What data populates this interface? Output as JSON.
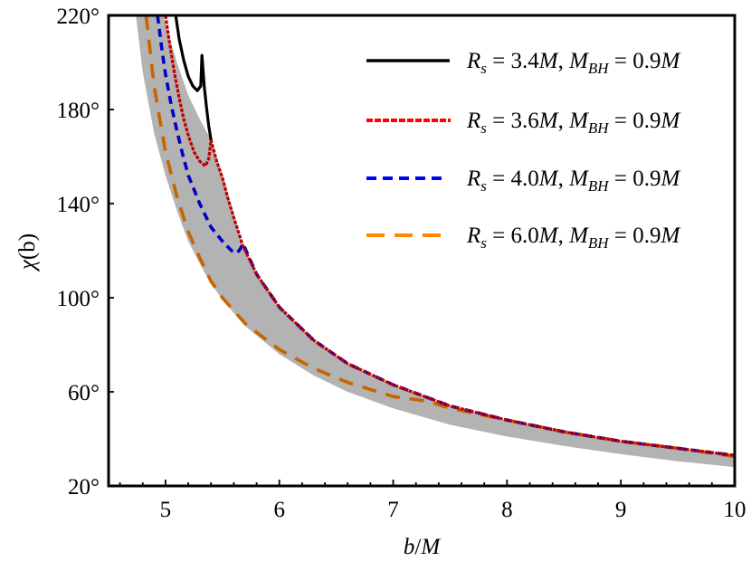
{
  "chart_data": {
    "type": "line",
    "title": "",
    "xlabel": "b/M",
    "ylabel": "χ(b)",
    "xlim": [
      4.5,
      10
    ],
    "ylim": [
      20,
      220
    ],
    "x_ticks": [
      5,
      6,
      7,
      8,
      9,
      10
    ],
    "x_tick_labels": [
      "5",
      "6",
      "7",
      "8",
      "9",
      "10"
    ],
    "y_ticks": [
      20,
      60,
      100,
      140,
      180,
      220
    ],
    "y_tick_labels": [
      "20°",
      "60°",
      "100°",
      "140°",
      "180°",
      "220°"
    ],
    "grid": false,
    "legend_position": "upper right",
    "band": {
      "name": "shaded region",
      "color": "#b3b3b3",
      "upper": {
        "x": [
          4.98,
          5.1,
          5.2,
          5.3,
          5.4,
          5.5,
          5.68,
          5.8,
          6.0,
          6.3,
          6.6,
          7.0,
          7.5,
          8.0,
          8.5,
          9.0,
          9.5,
          10.0
        ],
        "y": [
          220,
          200,
          186,
          176,
          167,
          152,
          122,
          110,
          96,
          82,
          72,
          63,
          54,
          48,
          43,
          39,
          36,
          33
        ]
      },
      "lower": {
        "x": [
          4.74,
          4.8,
          4.9,
          5.0,
          5.1,
          5.2,
          5.35,
          5.5,
          5.7,
          6.0,
          6.3,
          6.6,
          7.0,
          7.5,
          8.0,
          8.5,
          9.0,
          9.5,
          10.0
        ],
        "y": [
          220,
          196,
          170,
          152,
          137,
          124,
          110,
          99,
          88,
          76,
          67,
          60,
          53,
          46,
          41,
          37,
          33.5,
          30.5,
          28
        ]
      }
    },
    "series": [
      {
        "name": "R_s = 3.4M, M_BH = 0.9M",
        "color": "#000000",
        "style": "solid",
        "x": [
          5.09,
          5.12,
          5.16,
          5.2,
          5.24,
          5.28,
          5.31,
          5.32,
          5.34,
          5.36,
          5.38,
          5.4
        ],
        "y": [
          220,
          210,
          201,
          194,
          190,
          188,
          190,
          203,
          190,
          181,
          173,
          167
        ]
      },
      {
        "name": "R_s = 3.6M, M_BH = 0.9M",
        "color": "#d40000",
        "style": "dotted",
        "x": [
          5.0,
          5.04,
          5.08,
          5.12,
          5.16,
          5.2,
          5.25,
          5.3,
          5.35,
          5.38,
          5.4,
          5.45,
          5.5,
          5.55,
          5.6,
          5.68,
          5.8,
          6.0,
          6.3,
          6.6,
          7.0,
          7.5,
          8.0,
          8.5,
          9.0,
          9.5,
          10.0
        ],
        "y": [
          220,
          207,
          195,
          185,
          176,
          169,
          162,
          158,
          156,
          159,
          167,
          158,
          151,
          142,
          134,
          122,
          110,
          96,
          82,
          72,
          63,
          54,
          48,
          43,
          39,
          36,
          33
        ]
      },
      {
        "name": "R_s = 4.0M, M_BH = 0.9M",
        "color": "#0000dd",
        "style": "dashed",
        "x": [
          4.93,
          4.97,
          5.0,
          5.05,
          5.1,
          5.15,
          5.2,
          5.3,
          5.4,
          5.5,
          5.58,
          5.63,
          5.66,
          5.68,
          5.8,
          6.0,
          6.3,
          6.6,
          7.0,
          7.5,
          8.0,
          8.5,
          9.0,
          9.5,
          10.0
        ],
        "y": [
          220,
          205,
          195,
          182,
          171,
          161,
          152,
          140,
          130,
          124,
          120,
          119,
          121,
          123,
          110,
          96,
          82,
          72,
          63,
          54,
          48,
          43,
          39,
          36,
          33
        ]
      },
      {
        "name": "R_s = 6.0M, M_BH = 0.9M",
        "color": "#ff8800",
        "style": "long-dashed",
        "x": [
          4.83,
          4.9,
          5.0,
          5.1,
          5.2,
          5.3,
          5.4,
          5.5,
          5.7,
          6.0,
          6.3,
          6.6,
          7.0,
          7.3,
          7.5,
          8.0,
          8.5,
          9.0,
          9.5,
          10.0
        ],
        "y": [
          220,
          190,
          162,
          143,
          128,
          117,
          107,
          100,
          89,
          78,
          70,
          64,
          58,
          56,
          53,
          48,
          43,
          39,
          36,
          32.5
        ]
      }
    ]
  },
  "legend": {
    "items": [
      {
        "rs": "3.4",
        "mbh": "0.9"
      },
      {
        "rs": "3.6",
        "mbh": "0.9"
      },
      {
        "rs": "4.0",
        "mbh": "0.9"
      },
      {
        "rs": "6.0",
        "mbh": "0.9"
      }
    ]
  },
  "axes": {
    "xlabel_b": "b",
    "xlabel_slash": "/",
    "xlabel_M": "M",
    "ylabel_chi": "χ",
    "ylabel_arg": "(b)"
  }
}
